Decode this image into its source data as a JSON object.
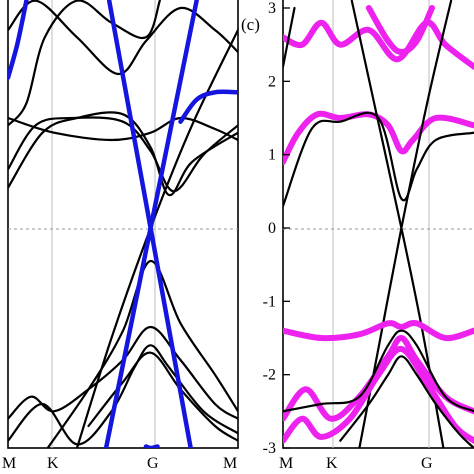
{
  "chart_data": [
    {
      "type": "line",
      "panel_label": "",
      "ylim": [
        -3,
        3
      ],
      "y_ticks": [],
      "k_points": [
        "M",
        "K",
        "G",
        "M"
      ],
      "zero_line": "dashed",
      "colors": {
        "bands": "#000000",
        "projection": "#1515e0"
      },
      "bands": [
        {
          "style": "black",
          "x": [
            0,
            0.08,
            0.16,
            0.3,
            0.45,
            0.6,
            0.66
          ],
          "y": [
            1.4,
            1.7,
            2.6,
            3.1,
            2.8,
            2.6,
            3.1
          ]
        },
        {
          "style": "black",
          "x": [
            0,
            0.12,
            0.3,
            0.48,
            0.6,
            0.75,
            0.9,
            1
          ],
          "y": [
            2.7,
            3.1,
            2.6,
            2.1,
            2.55,
            3,
            2.7,
            2.4
          ]
        },
        {
          "style": "black",
          "x": [
            0,
            0.15,
            0.3,
            0.5,
            0.62,
            0.7,
            0.8,
            1
          ],
          "y": [
            0.55,
            1.3,
            1.5,
            1.55,
            1.1,
            0.45,
            0.9,
            1.3
          ]
        },
        {
          "style": "black",
          "x": [
            0,
            0.12,
            0.28,
            0.5,
            0.62,
            0.72,
            0.85,
            1
          ],
          "y": [
            0.8,
            1.4,
            1.5,
            1.45,
            1.05,
            0.5,
            1,
            1.4
          ]
        },
        {
          "style": "black",
          "x": [
            0,
            0.2,
            0.45,
            0.62,
            0.75,
            0.9,
            1
          ],
          "y": [
            1.5,
            1.3,
            1.2,
            1.3,
            1.5,
            1.35,
            1.2
          ]
        },
        {
          "style": "black",
          "x": [
            0.3,
            0.45,
            0.62,
            0.8,
            1
          ],
          "y": [
            -3,
            -1.5,
            0,
            1.4,
            2.7
          ]
        },
        {
          "style": "black",
          "x": [
            0.15,
            0.35,
            0.5,
            0.62,
            0.75,
            0.9,
            1
          ],
          "y": [
            -3.1,
            -2.2,
            -1.4,
            -0.45,
            -1.3,
            -2,
            -2.5
          ]
        },
        {
          "style": "black",
          "x": [
            0,
            0.1,
            0.2,
            0.35,
            0.5,
            0.62,
            0.75,
            0.9,
            1
          ],
          "y": [
            -2.6,
            -2.3,
            -2.5,
            -2.2,
            -1.8,
            -1.35,
            -1.8,
            -2.4,
            -2.6
          ]
        },
        {
          "style": "black",
          "x": [
            0,
            0.15,
            0.3,
            0.45,
            0.55,
            0.62,
            0.7,
            0.85,
            1
          ],
          "y": [
            -2.9,
            -2.4,
            -2.95,
            -2.5,
            -1.9,
            -1.6,
            -1.9,
            -2.5,
            -2.8
          ]
        },
        {
          "style": "black",
          "x": [
            0.35,
            0.5,
            0.62,
            0.75,
            0.9,
            1
          ],
          "y": [
            -2.7,
            -2.1,
            -1.7,
            -2.2,
            -2.7,
            -2.9
          ]
        },
        {
          "style": "blue",
          "x": [
            0,
            0.04,
            0.08
          ],
          "y": [
            2.05,
            2.5,
            3.1
          ]
        },
        {
          "style": "blue",
          "x": [
            0.42,
            0.52,
            0.62,
            0.72,
            0.82
          ],
          "y": [
            -3.1,
            -1.55,
            0,
            1.55,
            3.1
          ]
        },
        {
          "style": "blue",
          "x": [
            0.44,
            0.53,
            0.62,
            0.71,
            0.8
          ],
          "y": [
            3.1,
            1.55,
            0,
            -1.55,
            -3.1
          ]
        },
        {
          "style": "blue",
          "x": [
            0.75,
            0.82,
            0.9,
            1
          ],
          "y": [
            1.45,
            1.75,
            1.85,
            1.85
          ]
        },
        {
          "style": "blue",
          "x": [
            0.6,
            0.62,
            0.65
          ],
          "y": [
            -2.98,
            -3,
            -2.98
          ]
        }
      ]
    },
    {
      "type": "line",
      "panel_label": "(c)",
      "ylim": [
        -3,
        3
      ],
      "y_ticks": [
        "3",
        "2",
        "1",
        "0",
        "-1",
        "-2",
        "-3"
      ],
      "k_points": [
        "M",
        "K",
        "G",
        "M"
      ],
      "zero_line": "dashed",
      "colors": {
        "bands": "#000000",
        "projection": "#ee22ee"
      },
      "bands": [
        {
          "style": "magenta",
          "x": [
            0,
            0.1,
            0.2,
            0.3,
            0.45,
            0.6,
            0.75,
            0.85,
            1
          ],
          "y": [
            2.6,
            2.5,
            2.8,
            2.5,
            2.7,
            2.3,
            2.8,
            2.5,
            2.2
          ]
        },
        {
          "style": "magenta",
          "x": [
            0.45,
            0.55,
            0.62,
            0.7,
            0.78
          ],
          "y": [
            3,
            2.55,
            2.4,
            2.55,
            3
          ]
        },
        {
          "style": "magenta",
          "x": [
            0,
            0.08,
            0.18,
            0.3,
            0.45,
            0.55,
            0.62,
            0.68,
            0.8,
            1
          ],
          "y": [
            0.9,
            1.3,
            1.55,
            1.5,
            1.55,
            1.4,
            1.05,
            1.2,
            1.5,
            1.4
          ]
        },
        {
          "style": "black",
          "x": [
            0,
            0.15,
            0.3,
            0.5,
            0.62,
            0.7,
            0.8,
            1
          ],
          "y": [
            0.3,
            1.35,
            1.45,
            1.5,
            0.4,
            0.8,
            1.2,
            1.3
          ]
        },
        {
          "style": "black",
          "x": [
            0,
            0.06
          ],
          "y": [
            2.2,
            3
          ]
        },
        {
          "style": "black",
          "x": [
            0.4,
            0.51,
            0.62,
            0.75,
            0.88
          ],
          "y": [
            -3,
            -1.5,
            0,
            1.65,
            3.1
          ]
        },
        {
          "style": "black",
          "x": [
            0.36,
            0.49,
            0.62,
            0.73,
            0.84
          ],
          "y": [
            3.1,
            1.55,
            0,
            -1.4,
            -3
          ]
        },
        {
          "style": "magenta",
          "x": [
            0,
            0.2,
            0.4,
            0.55,
            0.62,
            0.7,
            0.85,
            1
          ],
          "y": [
            -1.4,
            -1.5,
            -1.45,
            -1.3,
            -1.35,
            -1.3,
            -1.5,
            -1.4
          ]
        },
        {
          "style": "magenta",
          "x": [
            0,
            0.12,
            0.25,
            0.4,
            0.55,
            0.62,
            0.7,
            0.85,
            1
          ],
          "y": [
            -2.6,
            -2.2,
            -2.6,
            -2.3,
            -1.75,
            -1.5,
            -1.8,
            -2.3,
            -2.5
          ]
        },
        {
          "style": "magenta",
          "x": [
            0,
            0.1,
            0.2,
            0.35,
            0.5,
            0.62,
            0.75,
            0.9,
            1
          ],
          "y": [
            -2.9,
            -2.6,
            -2.85,
            -2.6,
            -2,
            -1.65,
            -2.1,
            -2.7,
            -2.9
          ]
        },
        {
          "style": "black",
          "x": [
            0,
            0.2,
            0.4,
            0.55,
            0.62,
            0.7,
            0.85,
            1
          ],
          "y": [
            -2.5,
            -2.4,
            -2.3,
            -1.6,
            -1.4,
            -1.6,
            -2.3,
            -2.5
          ]
        },
        {
          "style": "black",
          "x": [
            0.3,
            0.45,
            0.55,
            0.62,
            0.7,
            0.8,
            0.92,
            1
          ],
          "y": [
            -2.9,
            -2.4,
            -2,
            -1.75,
            -2,
            -2.4,
            -2.8,
            -3
          ]
        }
      ]
    }
  ]
}
